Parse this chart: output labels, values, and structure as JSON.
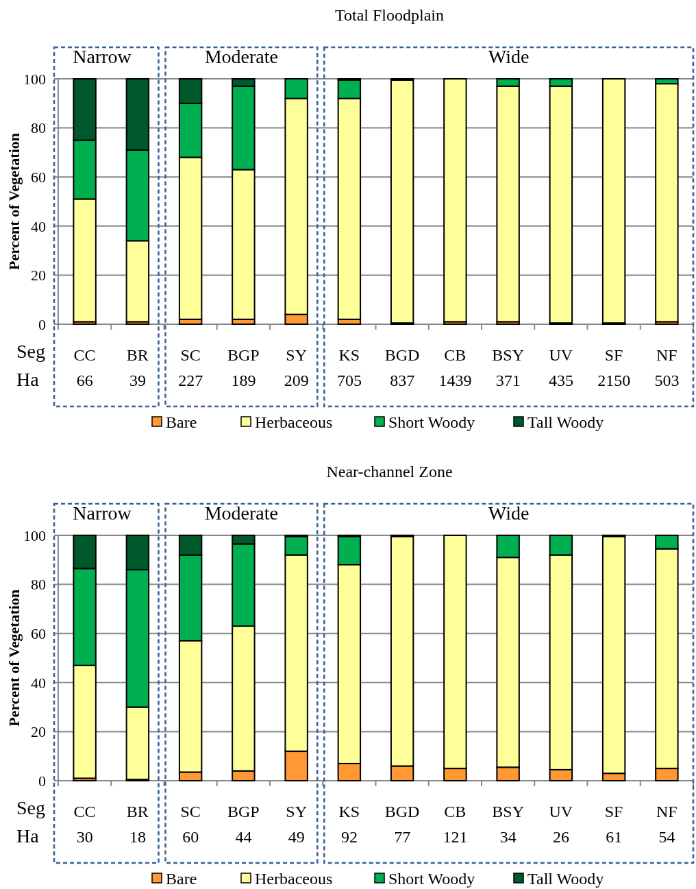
{
  "chart_data": [
    {
      "type": "bar",
      "title": "Total Floodplain",
      "ylabel": "Percent of Vegetation",
      "categories": [
        "CC",
        "BR",
        "SC",
        "BGP",
        "SY",
        "KS",
        "BGD",
        "CB",
        "BSY",
        "UV",
        "SF",
        "NF"
      ],
      "stacked": true,
      "ylim": [
        0,
        100
      ],
      "yticks": [
        0,
        20,
        40,
        60,
        80,
        100
      ],
      "grid": "y",
      "legend": "bottom",
      "series": [
        {
          "name": "Bare",
          "color": "#ff9933",
          "values": [
            1,
            1,
            2,
            2,
            4,
            2,
            0.5,
            1,
            1,
            0.5,
            0.5,
            1
          ]
        },
        {
          "name": "Herbaceous",
          "color": "#ffff99",
          "values": [
            50,
            33,
            66,
            61,
            88,
            90,
            99,
            99,
            96,
            96.5,
            99.5,
            97
          ]
        },
        {
          "name": "Short Woody",
          "color": "#00b050",
          "values": [
            24,
            37,
            22,
            34,
            8,
            7.5,
            0,
            0,
            3,
            3,
            0,
            2
          ]
        },
        {
          "name": "Tall Woody",
          "color": "#00592b",
          "values": [
            25,
            29,
            10,
            3,
            0,
            0.5,
            0.5,
            0,
            0,
            0,
            0,
            0
          ]
        }
      ],
      "annotations": [
        "Narrow",
        "Moderate",
        "Wide",
        "Seg",
        "Ha",
        "66",
        "39",
        "227",
        "189",
        "209",
        "705",
        "837",
        "1439",
        "371",
        "435",
        "2150",
        "503"
      ]
    },
    {
      "type": "bar",
      "title": "Near-channel Zone",
      "ylabel": "Percent of Vegetation",
      "categories": [
        "CC",
        "BR",
        "SC",
        "BGP",
        "SY",
        "KS",
        "BGD",
        "CB",
        "BSY",
        "UV",
        "SF",
        "NF"
      ],
      "stacked": true,
      "ylim": [
        0,
        100
      ],
      "yticks": [
        0,
        20,
        40,
        60,
        80,
        100
      ],
      "grid": "y",
      "legend": "bottom",
      "series": [
        {
          "name": "Bare",
          "color": "#ff9933",
          "values": [
            1,
            0.5,
            3.5,
            4,
            12,
            7,
            6,
            5,
            5.5,
            4.5,
            3,
            5
          ]
        },
        {
          "name": "Herbaceous",
          "color": "#ffff99",
          "values": [
            46,
            29.5,
            53.5,
            59,
            80,
            81,
            93.5,
            95,
            85.5,
            87.5,
            96.5,
            89.5
          ]
        },
        {
          "name": "Short Woody",
          "color": "#00b050",
          "values": [
            39.5,
            56,
            35,
            33.5,
            7.5,
            11.5,
            0,
            0,
            9,
            8,
            0,
            5.5
          ]
        },
        {
          "name": "Tall Woody",
          "color": "#00592b",
          "values": [
            13.5,
            14,
            8,
            3.5,
            0.5,
            0.5,
            0.5,
            0,
            0,
            0,
            0.5,
            0
          ]
        }
      ],
      "annotations": [
        "Narrow",
        "Moderate",
        "Wide",
        "Seg",
        "Ha",
        "30",
        "18",
        "60",
        "44",
        "49",
        "92",
        "77",
        "121",
        "34",
        "26",
        "61",
        "54"
      ]
    }
  ]
}
